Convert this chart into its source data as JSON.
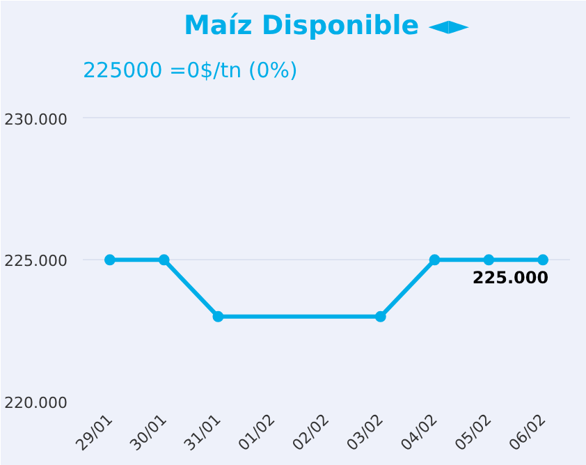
{
  "chart_data": {
    "type": "line",
    "title": "Maíz Disponible ◄►",
    "subtitle": "225000 =0$/tn (0%)",
    "categories": [
      "29/01",
      "30/01",
      "31/01",
      "01/02",
      "02/02",
      "03/02",
      "04/02",
      "05/02",
      "06/02"
    ],
    "series": [
      {
        "color": "#00aee8",
        "values": [
          225000,
          225000,
          223000,
          null,
          null,
          223000,
          225000,
          225000,
          225000
        ],
        "value_labels": [
          null,
          null,
          null,
          null,
          null,
          null,
          null,
          null,
          "225.000"
        ]
      }
    ],
    "ylim": [
      220000,
      231000
    ],
    "yticks": [
      {
        "value": 220000,
        "label": "220.000"
      },
      {
        "value": 225000,
        "label": "225.000"
      },
      {
        "value": 230000,
        "label": "230.000"
      }
    ],
    "grid": "y",
    "marker": "circle",
    "line_style": "solid"
  }
}
